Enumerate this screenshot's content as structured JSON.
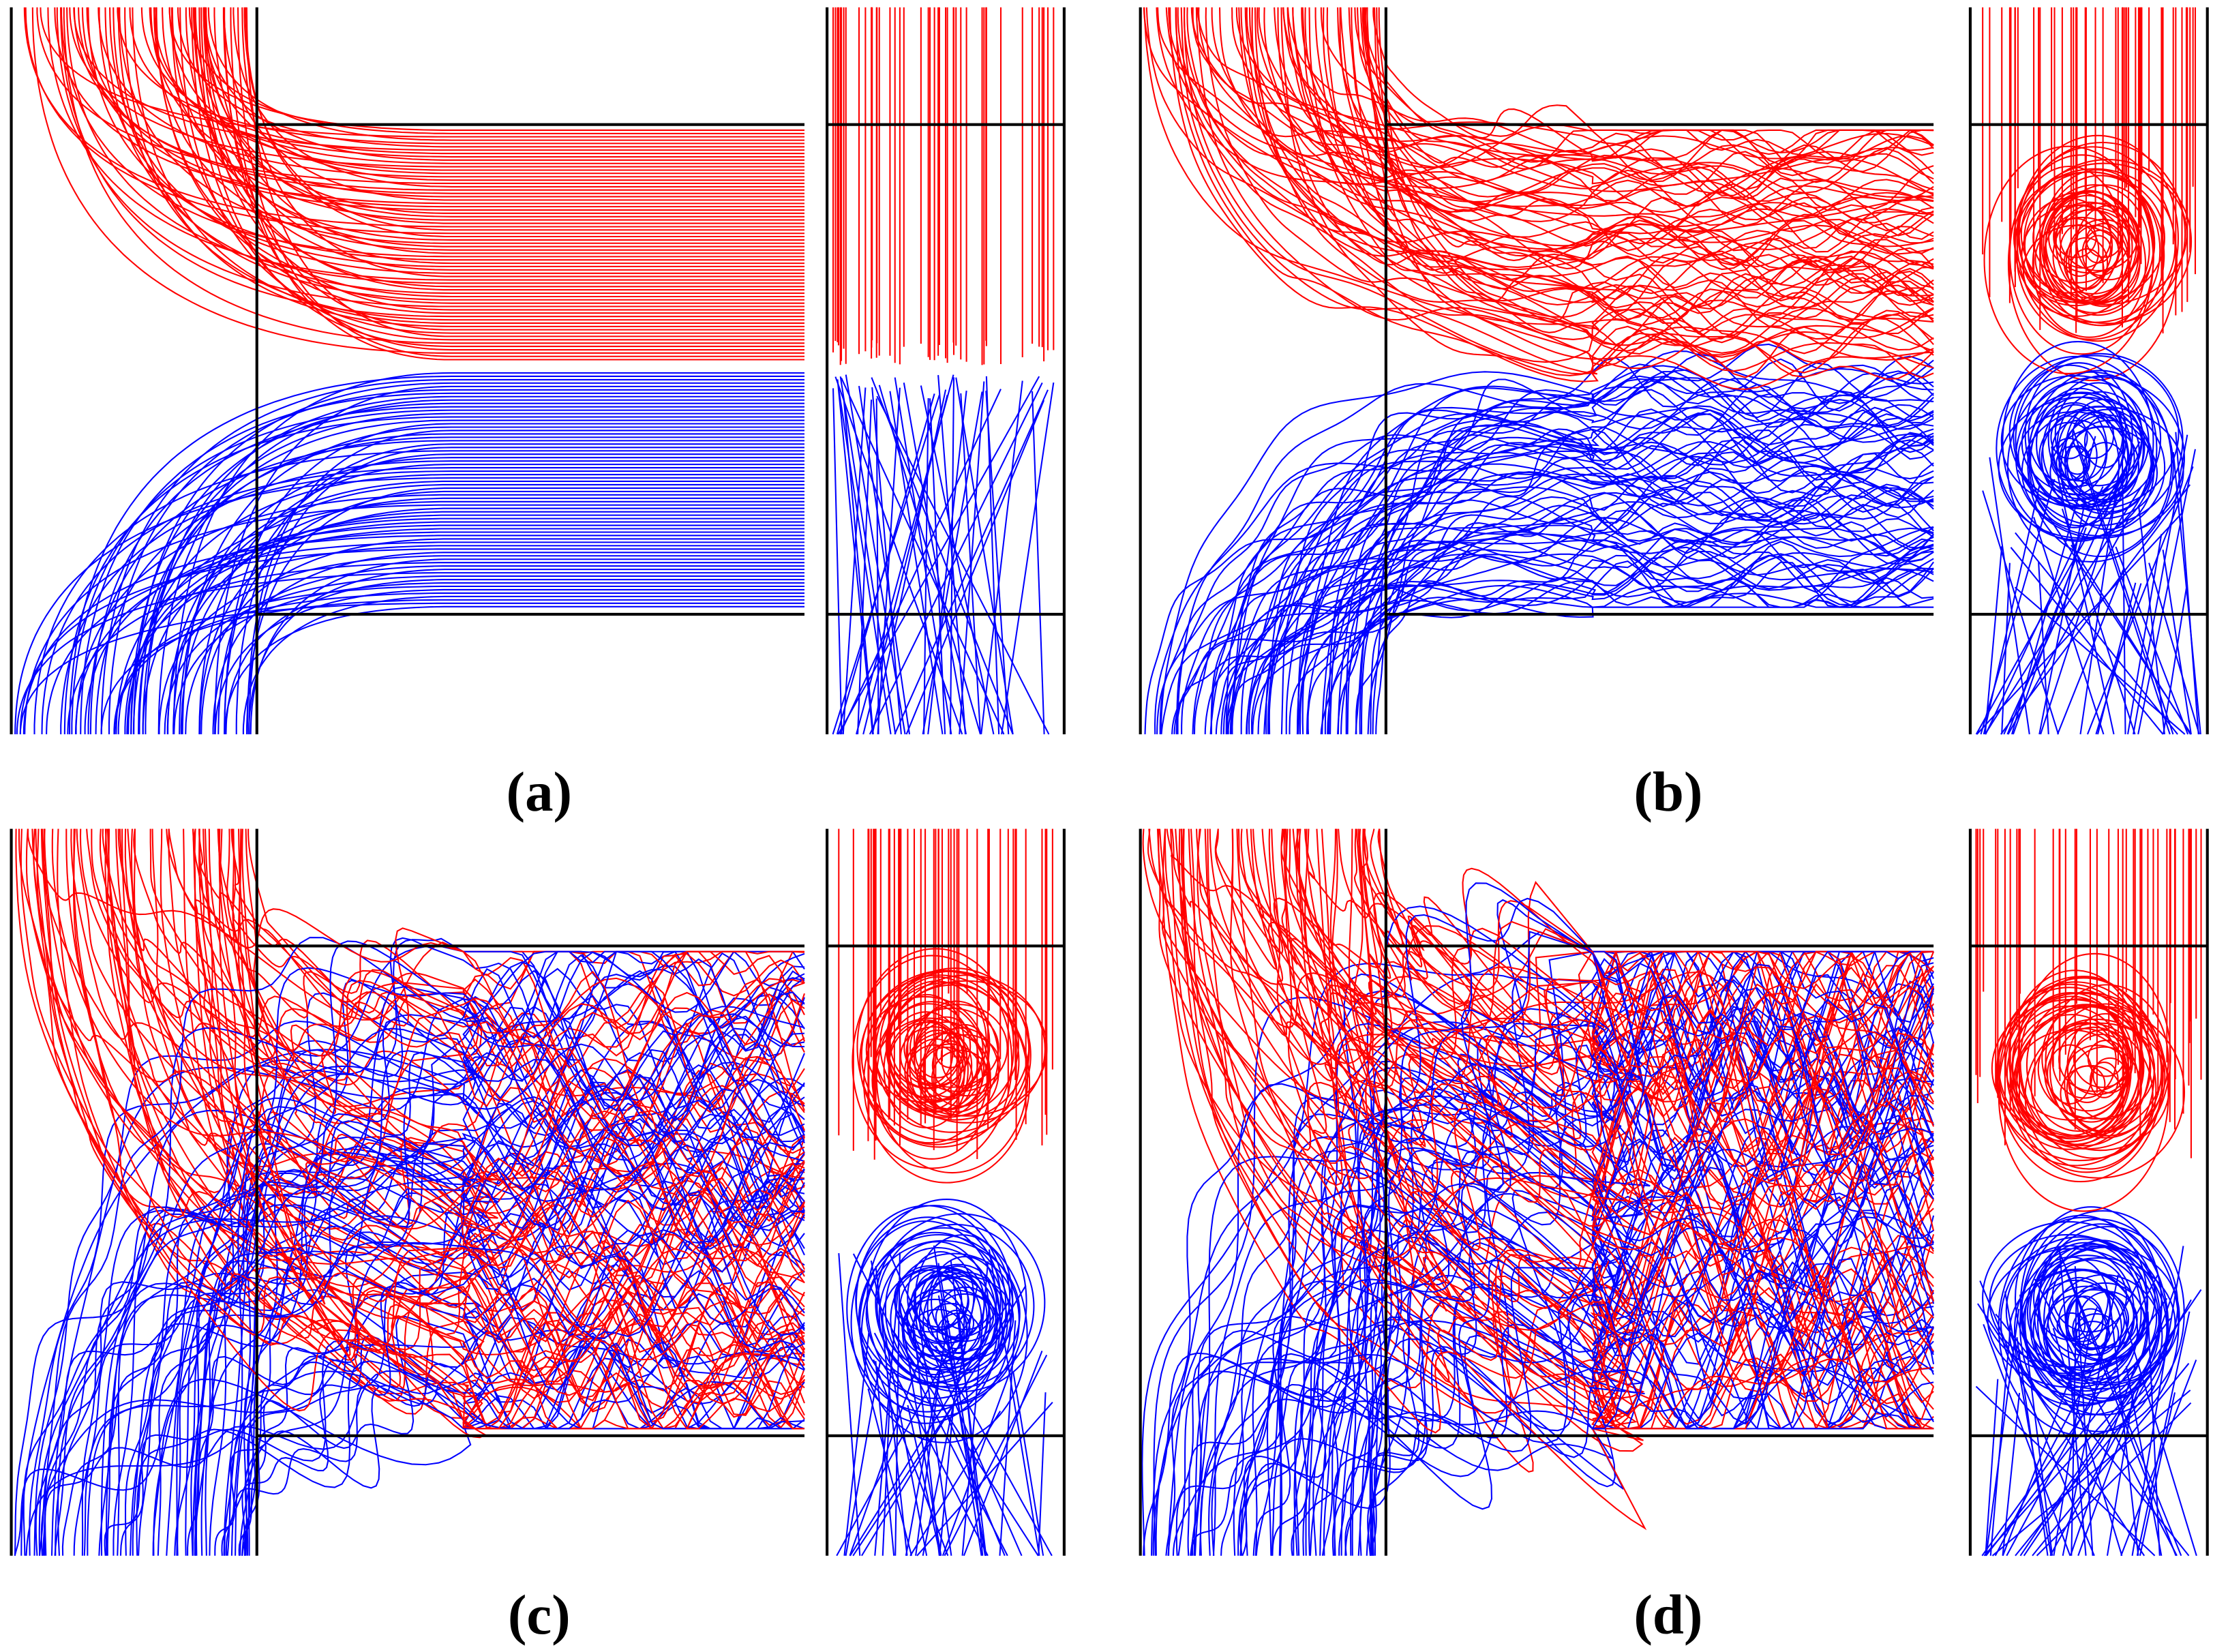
{
  "panels": [
    {
      "label": "(a)"
    },
    {
      "label": "(b)"
    },
    {
      "label": "(c)"
    },
    {
      "label": "(d)"
    }
  ]
}
